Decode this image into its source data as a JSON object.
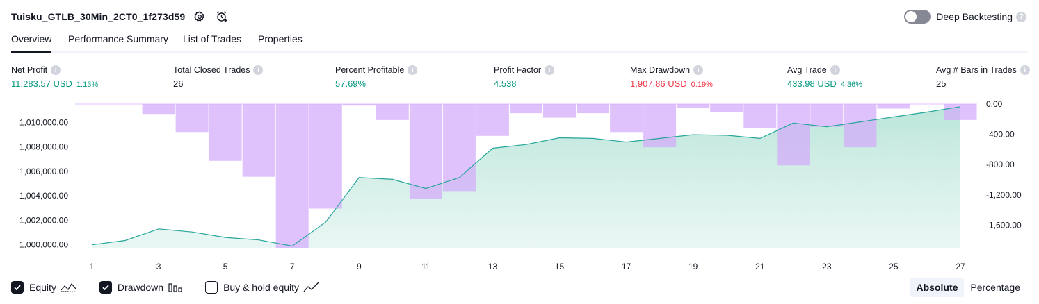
{
  "header": {
    "strategy_name": "Tuisku_GTLB_30Min_2CT0_1f273d59",
    "deep_backtesting_label": "Deep Backtesting"
  },
  "tabs": [
    {
      "label": "Overview",
      "active": true
    },
    {
      "label": "Performance Summary",
      "active": false
    },
    {
      "label": "List of Trades",
      "active": false
    },
    {
      "label": "Properties",
      "active": false
    }
  ],
  "metrics": [
    {
      "label": "Net Profit",
      "value": "11,283.57 USD",
      "pct": "1.13%",
      "color": "#089981"
    },
    {
      "label": "Total Closed Trades",
      "value": "26",
      "pct": "",
      "color": "#131722"
    },
    {
      "label": "Percent Profitable",
      "value": "57.69%",
      "pct": "",
      "color": "#089981"
    },
    {
      "label": "Profit Factor",
      "value": "4.538",
      "pct": "",
      "color": "#089981"
    },
    {
      "label": "Max Drawdown",
      "value": "1,907.86 USD",
      "pct": "0.19%",
      "color": "#f23645"
    },
    {
      "label": "Avg Trade",
      "value": "433.98 USD",
      "pct": "4.36%",
      "color": "#089981"
    },
    {
      "label": "Avg # Bars in Trades",
      "value": "25",
      "pct": "",
      "color": "#131722"
    }
  ],
  "chart_data": {
    "type": "area",
    "x": [
      1,
      2,
      3,
      4,
      5,
      6,
      7,
      8,
      9,
      10,
      11,
      12,
      13,
      14,
      15,
      16,
      17,
      18,
      19,
      20,
      21,
      22,
      23,
      24,
      25,
      26,
      27
    ],
    "x_tick_labels": [
      "1",
      "3",
      "5",
      "7",
      "9",
      "11",
      "13",
      "15",
      "17",
      "19",
      "21",
      "23",
      "25",
      "27"
    ],
    "series": [
      {
        "name": "Equity",
        "axis": "left",
        "style": "area",
        "color": "#26a69a",
        "values": [
          1000000,
          1000350,
          1001300,
          1001050,
          1000600,
          1000400,
          999900,
          1001850,
          1005500,
          1005350,
          1004600,
          1005500,
          1007900,
          1008200,
          1008750,
          1008700,
          1008400,
          1008700,
          1009000,
          1008950,
          1008700,
          1009950,
          1009650,
          1010050,
          1010450,
          1010850,
          1011283.57
        ]
      },
      {
        "name": "Drawdown",
        "axis": "right",
        "style": "bar",
        "color": "#e1c4fd",
        "values": [
          0,
          0,
          -130,
          -370,
          -750,
          -960,
          -1907.86,
          -1380,
          -20,
          -210,
          -1250,
          -1150,
          -420,
          -120,
          -180,
          -120,
          -370,
          -570,
          -50,
          -110,
          -320,
          -810,
          -300,
          -570,
          -60,
          0,
          -210
        ]
      }
    ],
    "left_axis": {
      "ticks": [
        "1,000,000.00",
        "1,002,000.00",
        "1,004,000.00",
        "1,006,000.00",
        "1,008,000.00",
        "1,010,000.00"
      ],
      "range": [
        999700,
        1011500
      ]
    },
    "right_axis": {
      "ticks": [
        "0.00",
        "-400.00",
        "-800.00",
        "-1,200.00",
        "-1,600.00"
      ],
      "range": [
        -1907.86,
        0
      ]
    }
  },
  "legend": {
    "equity_label": "Equity",
    "drawdown_label": "Drawdown",
    "buyhold_label": "Buy & hold equity",
    "equity_checked": true,
    "drawdown_checked": true,
    "buyhold_checked": false
  },
  "view_mode": {
    "absolute_label": "Absolute",
    "percentage_label": "Percentage",
    "selected": "Absolute"
  }
}
